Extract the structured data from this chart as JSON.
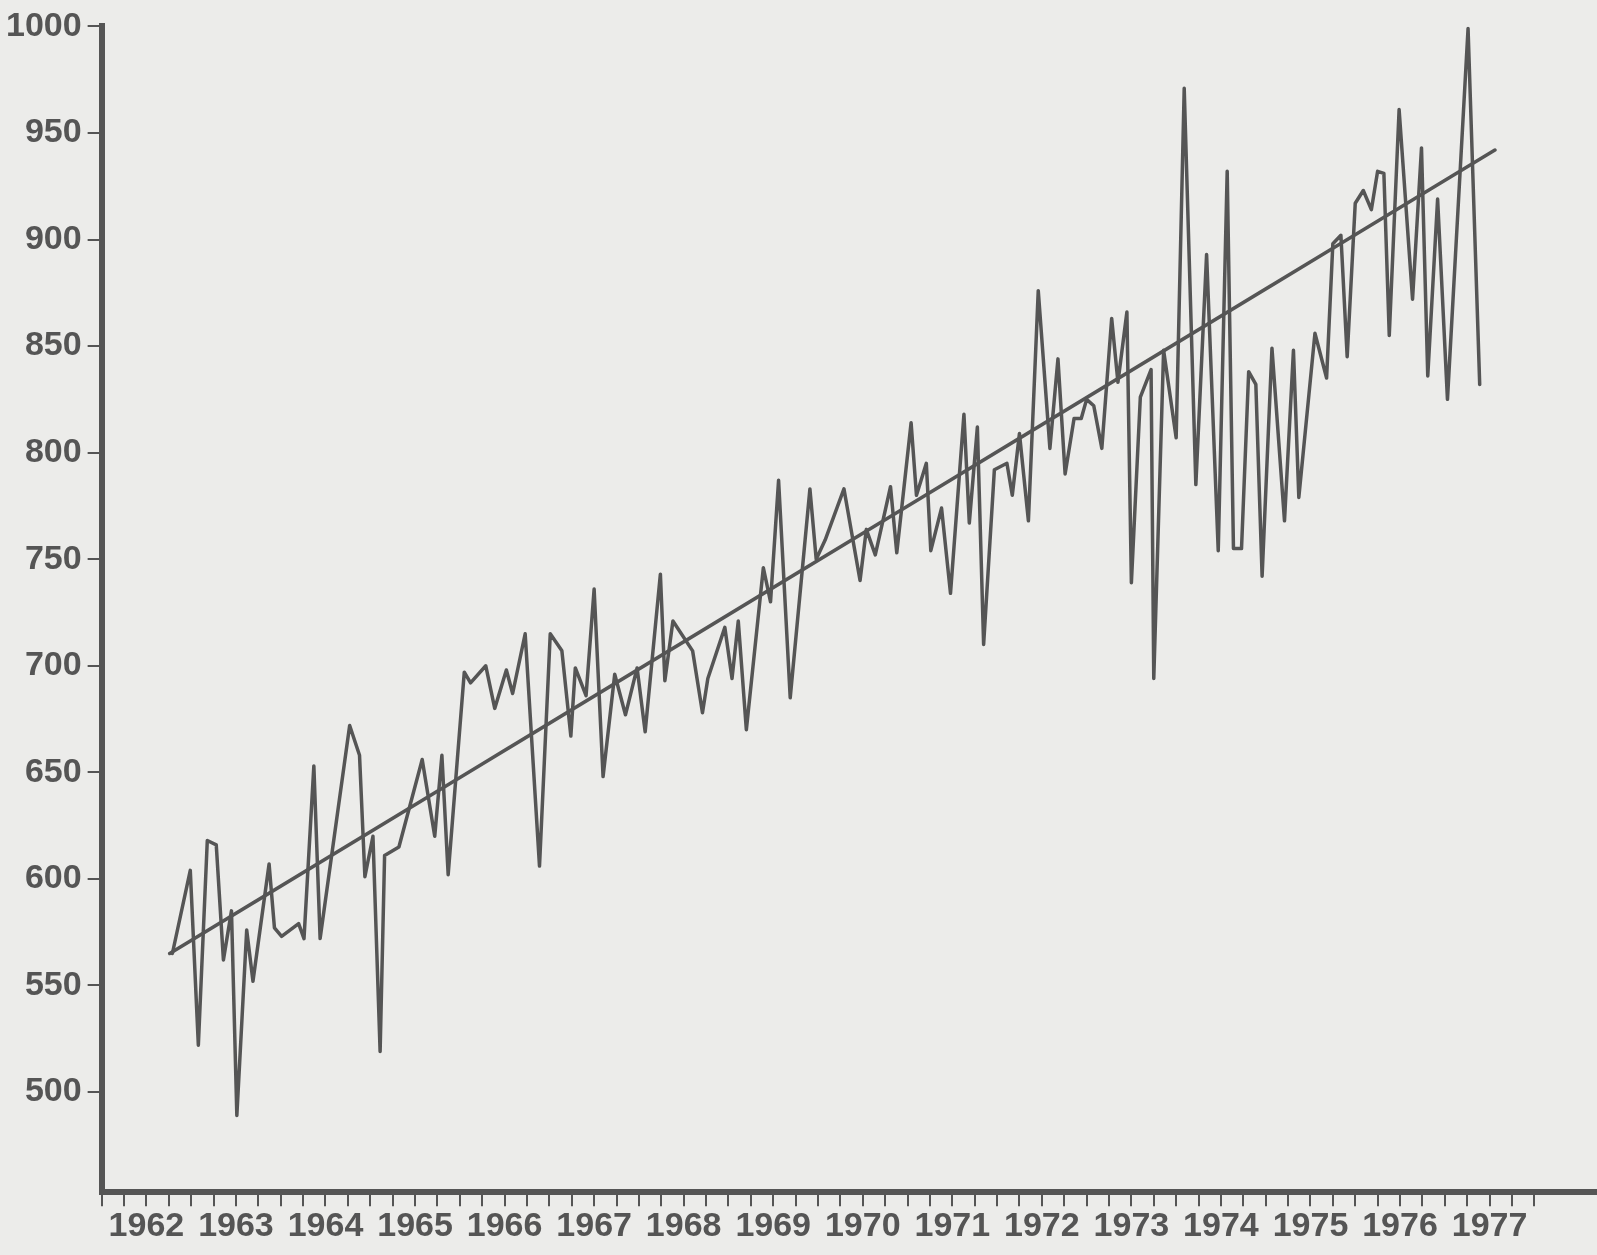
{
  "chart_data": {
    "type": "line",
    "xlim": [
      1962,
      1978.7
    ],
    "ylim": [
      453,
      1000
    ],
    "yticks": [
      500,
      550,
      600,
      650,
      700,
      750,
      800,
      850,
      900,
      950,
      1000
    ],
    "xticks": [
      {
        "value": 1962,
        "label": null
      },
      {
        "value": 1962.25,
        "label": null
      },
      {
        "value": 1962.5,
        "label": "1962"
      },
      {
        "value": 1962.75,
        "label": null
      },
      {
        "value": 1963,
        "label": null
      },
      {
        "value": 1963.25,
        "label": null
      },
      {
        "value": 1963.5,
        "label": "1963"
      },
      {
        "value": 1963.75,
        "label": null
      },
      {
        "value": 1964,
        "label": null
      },
      {
        "value": 1964.25,
        "label": null
      },
      {
        "value": 1964.5,
        "label": "1964"
      },
      {
        "value": 1964.75,
        "label": null
      },
      {
        "value": 1965,
        "label": null
      },
      {
        "value": 1965.25,
        "label": null
      },
      {
        "value": 1965.5,
        "label": "1965"
      },
      {
        "value": 1965.75,
        "label": null
      },
      {
        "value": 1966,
        "label": null
      },
      {
        "value": 1966.25,
        "label": null
      },
      {
        "value": 1966.5,
        "label": "1966"
      },
      {
        "value": 1966.75,
        "label": null
      },
      {
        "value": 1967,
        "label": null
      },
      {
        "value": 1967.25,
        "label": null
      },
      {
        "value": 1967.5,
        "label": "1967"
      },
      {
        "value": 1967.75,
        "label": null
      },
      {
        "value": 1968,
        "label": null
      },
      {
        "value": 1968.25,
        "label": null
      },
      {
        "value": 1968.5,
        "label": "1968"
      },
      {
        "value": 1968.75,
        "label": null
      },
      {
        "value": 1969,
        "label": null
      },
      {
        "value": 1969.25,
        "label": null
      },
      {
        "value": 1969.5,
        "label": "1969"
      },
      {
        "value": 1969.75,
        "label": null
      },
      {
        "value": 1970,
        "label": null
      },
      {
        "value": 1970.25,
        "label": null
      },
      {
        "value": 1970.5,
        "label": "1970"
      },
      {
        "value": 1970.75,
        "label": null
      },
      {
        "value": 1971,
        "label": null
      },
      {
        "value": 1971.25,
        "label": null
      },
      {
        "value": 1971.5,
        "label": "1971"
      },
      {
        "value": 1971.75,
        "label": null
      },
      {
        "value": 1972,
        "label": null
      },
      {
        "value": 1972.25,
        "label": null
      },
      {
        "value": 1972.5,
        "label": "1972"
      },
      {
        "value": 1972.75,
        "label": null
      },
      {
        "value": 1973,
        "label": null
      },
      {
        "value": 1973.25,
        "label": null
      },
      {
        "value": 1973.5,
        "label": "1973"
      },
      {
        "value": 1973.75,
        "label": null
      },
      {
        "value": 1974,
        "label": null
      },
      {
        "value": 1974.25,
        "label": null
      },
      {
        "value": 1974.5,
        "label": "1974"
      },
      {
        "value": 1974.75,
        "label": null
      },
      {
        "value": 1975,
        "label": null
      },
      {
        "value": 1975.25,
        "label": null
      },
      {
        "value": 1975.5,
        "label": "1975"
      },
      {
        "value": 1975.75,
        "label": null
      },
      {
        "value": 1976,
        "label": null
      },
      {
        "value": 1976.25,
        "label": null
      },
      {
        "value": 1976.5,
        "label": "1976"
      },
      {
        "value": 1976.75,
        "label": null
      },
      {
        "value": 1977,
        "label": null
      },
      {
        "value": 1977.25,
        "label": null
      },
      {
        "value": 1977.5,
        "label": "1977"
      },
      {
        "value": 1977.75,
        "label": null
      },
      {
        "value": 1978,
        "label": null
      }
    ],
    "grid": false,
    "legend": false,
    "marker": "none",
    "line_style": "solid",
    "series": [
      {
        "color": "#555555",
        "x": [
          1962.79,
          1962.99,
          1963.08,
          1963.18,
          1963.28,
          1963.36,
          1963.45,
          1963.51,
          1963.62,
          1963.69,
          1963.87,
          1963.93,
          1964.01,
          1964.2,
          1964.26,
          1964.37,
          1964.44,
          1964.77,
          1964.88,
          1964.94,
          1965.03,
          1965.11,
          1965.16,
          1965.32,
          1965.58,
          1965.72,
          1965.8,
          1965.87,
          1966.05,
          1966.12,
          1966.29,
          1966.39,
          1966.52,
          1966.59,
          1966.73,
          1966.89,
          1967.01,
          1967.14,
          1967.24,
          1967.29,
          1967.41,
          1967.5,
          1967.6,
          1967.73,
          1967.85,
          1967.98,
          1968.07,
          1968.24,
          1968.29,
          1968.38,
          1968.6,
          1968.71,
          1968.77,
          1968.96,
          1969.04,
          1969.11,
          1969.2,
          1969.39,
          1969.47,
          1969.56,
          1969.69,
          1969.91,
          1969.98,
          1970.08,
          1970.29,
          1970.47,
          1970.54,
          1970.64,
          1970.81,
          1970.88,
          1971.04,
          1971.1,
          1971.21,
          1971.26,
          1971.38,
          1971.48,
          1971.63,
          1971.69,
          1971.78,
          1971.85,
          1971.97,
          1972.11,
          1972.17,
          1972.25,
          1972.35,
          1972.46,
          1972.59,
          1972.68,
          1972.76,
          1972.86,
          1972.94,
          1973,
          1973.08,
          1973.17,
          1973.28,
          1973.35,
          1973.45,
          1973.5,
          1973.6,
          1973.72,
          1973.75,
          1973.86,
          1974,
          1974.09,
          1974.22,
          1974.34,
          1974.47,
          1974.57,
          1974.64,
          1974.73,
          1974.81,
          1974.89,
          1974.96,
          1975.07,
          1975.21,
          1975.31,
          1975.37,
          1975.55,
          1975.68,
          1975.75,
          1975.84,
          1975.91,
          1976,
          1976.09,
          1976.18,
          1976.25,
          1976.32,
          1976.38,
          1976.49,
          1976.64,
          1976.74,
          1976.81,
          1976.92,
          1977.03,
          1977.26,
          1977.39
        ],
        "values": [
          565,
          604,
          522,
          618,
          616,
          562,
          585,
          489,
          576,
          552,
          607,
          577,
          573,
          579,
          572,
          653,
          572,
          672,
          658,
          601,
          620,
          519,
          611,
          615,
          656,
          620,
          658,
          602,
          697,
          692,
          700,
          680,
          698,
          687,
          715,
          606,
          715,
          707,
          667,
          699,
          686,
          736,
          648,
          696,
          677,
          699,
          669,
          743,
          693,
          721,
          707,
          678,
          694,
          718,
          694,
          721,
          670,
          746,
          730,
          787,
          685,
          783,
          750,
          759,
          783,
          740,
          764,
          752,
          784,
          753,
          814,
          780,
          795,
          754,
          774,
          734,
          818,
          767,
          812,
          710,
          792,
          795,
          780,
          809,
          768,
          876,
          802,
          844,
          790,
          816,
          816,
          825,
          822,
          802,
          863,
          833,
          866,
          739,
          826,
          839,
          694,
          848,
          807,
          971,
          785,
          893,
          754,
          932,
          755,
          755,
          838,
          832,
          742,
          849,
          768,
          848,
          779,
          856,
          835,
          898,
          902,
          845,
          917,
          923,
          914,
          932,
          931,
          855,
          961,
          872,
          943,
          836,
          919,
          825,
          999,
          832
        ]
      },
      {
        "color": "#555555",
        "x": [
          1962.76,
          1977.56
        ],
        "values": [
          565,
          942
        ]
      }
    ]
  }
}
